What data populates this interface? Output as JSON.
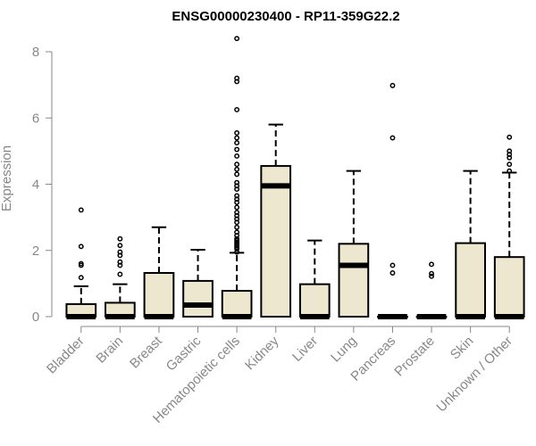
{
  "chart_data": {
    "type": "boxplot",
    "title": "ENSG00000230400 - RP11-359G22.2",
    "xlabel": "",
    "ylabel": "Expression",
    "ylim": [
      0,
      8.4
    ],
    "yticks": [
      0,
      2,
      4,
      6,
      8
    ],
    "categories": [
      "Bladder",
      "Brain",
      "Breast",
      "Gastric",
      "Hematopoietic cells",
      "Kidney",
      "Liver",
      "Lung",
      "Pancreas",
      "Prostate",
      "Skin",
      "Unknown / Other"
    ],
    "boxes": [
      {
        "category": "Bladder",
        "q1": 0,
        "median": 0,
        "q3": 0.38,
        "whisker_low": 0,
        "whisker_high": 0.92,
        "outliers": [
          1.18,
          1.55,
          1.6,
          2.12,
          3.22
        ]
      },
      {
        "category": "Brain",
        "q1": 0,
        "median": 0,
        "q3": 0.42,
        "whisker_low": 0,
        "whisker_high": 0.98,
        "outliers": [
          1.28,
          1.55,
          1.65,
          1.85,
          1.95,
          2.15,
          2.35
        ]
      },
      {
        "category": "Breast",
        "q1": 0,
        "median": 0,
        "q3": 1.32,
        "whisker_low": 0,
        "whisker_high": 2.7,
        "outliers": []
      },
      {
        "category": "Gastric",
        "q1": 0,
        "median": 0.35,
        "q3": 1.08,
        "whisker_low": 0,
        "whisker_high": 2.02,
        "outliers": []
      },
      {
        "category": "Hematopoietic cells",
        "q1": 0,
        "median": 0,
        "q3": 0.78,
        "whisker_low": 0,
        "whisker_high": 1.93,
        "outliers": [
          1.95,
          2.05,
          2.1,
          2.15,
          2.2,
          2.25,
          2.3,
          2.35,
          2.45,
          2.55,
          2.7,
          2.85,
          2.95,
          3.05,
          3.15,
          3.3,
          3.45,
          3.55,
          3.65,
          3.85,
          3.95,
          4.05,
          4.3,
          4.45,
          4.6,
          4.85,
          5.05,
          5.25,
          5.4,
          5.55,
          6.25,
          7.1,
          7.2,
          8.4
        ]
      },
      {
        "category": "Kidney",
        "q1": 0,
        "median": 3.95,
        "q3": 4.55,
        "whisker_low": 0,
        "whisker_high": 5.8,
        "outliers": []
      },
      {
        "category": "Liver",
        "q1": 0,
        "median": 0,
        "q3": 0.98,
        "whisker_low": 0,
        "whisker_high": 2.3,
        "outliers": []
      },
      {
        "category": "Lung",
        "q1": 0,
        "median": 1.55,
        "q3": 2.2,
        "whisker_low": 0,
        "whisker_high": 4.4,
        "outliers": []
      },
      {
        "category": "Pancreas",
        "q1": 0,
        "median": 0,
        "q3": 0,
        "whisker_low": 0,
        "whisker_high": 0,
        "outliers": [
          1.32,
          1.55,
          5.4,
          6.98
        ]
      },
      {
        "category": "Prostate",
        "q1": 0,
        "median": 0,
        "q3": 0,
        "whisker_low": 0,
        "whisker_high": 0,
        "outliers": [
          1.22,
          1.3,
          1.58
        ]
      },
      {
        "category": "Skin",
        "q1": 0,
        "median": 0,
        "q3": 2.22,
        "whisker_low": 0,
        "whisker_high": 4.4,
        "outliers": []
      },
      {
        "category": "Unknown / Other",
        "q1": 0,
        "median": 0,
        "q3": 1.8,
        "whisker_low": 0,
        "whisker_high": 4.35,
        "outliers": [
          4.4,
          4.6,
          4.8,
          4.9,
          5.0,
          5.42
        ]
      }
    ],
    "colors": {
      "box_fill": "#ede7cf",
      "box_stroke": "#000000",
      "axis": "#888888",
      "tick_label": "#888888",
      "title": "#000000"
    }
  }
}
